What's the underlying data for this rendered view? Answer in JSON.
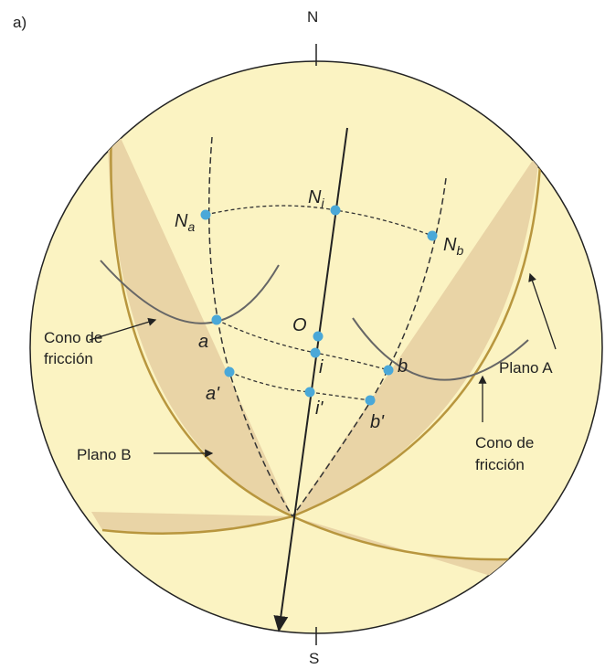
{
  "panel_label": "a)",
  "north": "N",
  "south": "S",
  "points": [
    {
      "label": "N",
      "sub": "a"
    },
    {
      "label": "N",
      "sub": "i"
    },
    {
      "label": "N",
      "sub": "b"
    },
    {
      "label": "O"
    },
    {
      "label": "a"
    },
    {
      "label": "i"
    },
    {
      "label": "b"
    },
    {
      "label": "a'"
    },
    {
      "label": "i'"
    },
    {
      "label": "b'"
    }
  ],
  "annotations": {
    "cone_left": [
      "Cono de",
      "fricción"
    ],
    "plane_a": "Plano A",
    "cone_right": [
      "Cono de",
      "fricción"
    ],
    "plane_b": "Plano B"
  }
}
